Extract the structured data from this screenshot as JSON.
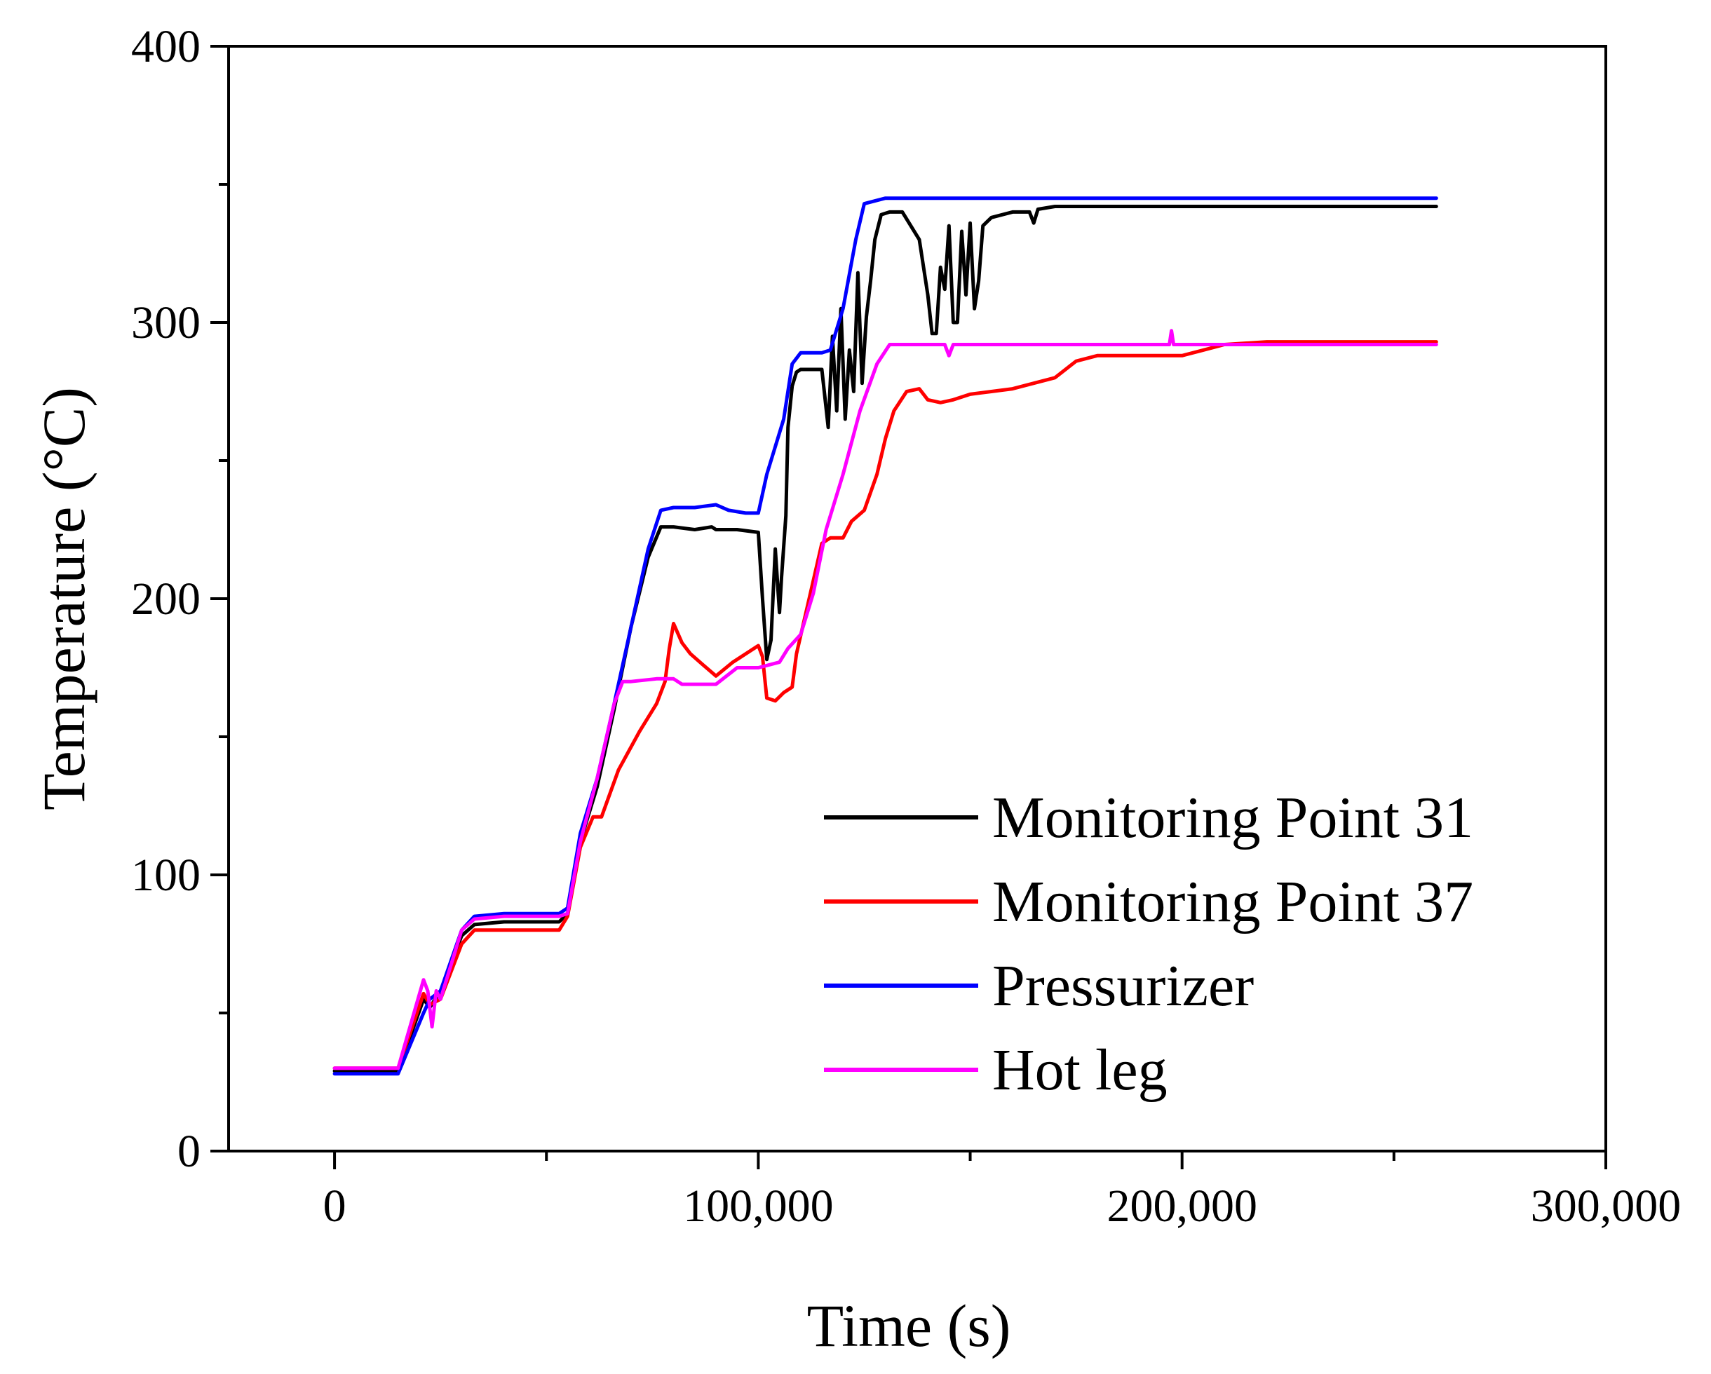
{
  "chart_data": {
    "type": "line",
    "title": "",
    "xlabel": "Time (s)",
    "ylabel": "Temperature (°C)",
    "xlim": [
      -25000,
      300000
    ],
    "ylim": [
      0,
      400
    ],
    "x_ticks": [
      0,
      100000,
      200000,
      300000
    ],
    "x_tick_labels": [
      "0",
      "100,000",
      "200,000",
      "300,000"
    ],
    "x_minor_ticks": [
      50000,
      150000,
      250000
    ],
    "y_ticks": [
      0,
      100,
      200,
      300,
      400
    ],
    "y_tick_labels": [
      "0",
      "100",
      "200",
      "300",
      "400"
    ],
    "y_minor_ticks": [
      50,
      150,
      250,
      350
    ],
    "grid": false,
    "legend_position": "bottom-right",
    "series": [
      {
        "name": "Monitoring Point 31",
        "color": "#000000",
        "x": [
          0,
          15000,
          21000,
          22500,
          25000,
          30000,
          33000,
          40000,
          53000,
          55000,
          58000,
          62000,
          66000,
          70000,
          74000,
          77000,
          80000,
          85000,
          89000,
          90000,
          95000,
          100000,
          101000,
          102000,
          103000,
          104000,
          105000,
          105500,
          106500,
          107000,
          108000,
          109000,
          110000,
          112000,
          115000,
          116500,
          117500,
          118500,
          119500,
          120500,
          121500,
          122500,
          123500,
          124500,
          125500,
          126500,
          127500,
          129000,
          131000,
          134000,
          138000,
          140000,
          141000,
          142000,
          143000,
          144000,
          145000,
          146000,
          147000,
          148000,
          149000,
          150000,
          151000,
          152000,
          153000,
          155000,
          160000,
          164000,
          165000,
          166000,
          170000,
          180000,
          200000,
          220000,
          240000,
          260000
        ],
        "y": [
          29,
          29,
          55,
          52,
          58,
          78,
          82,
          83,
          83,
          86,
          112,
          132,
          160,
          190,
          215,
          226,
          226,
          225,
          226,
          225,
          225,
          224,
          200,
          178,
          185,
          218,
          195,
          208,
          230,
          262,
          277,
          282,
          283,
          283,
          283,
          262,
          295,
          268,
          305,
          265,
          290,
          275,
          318,
          278,
          302,
          315,
          330,
          339,
          340,
          340,
          330,
          310,
          296,
          296,
          320,
          312,
          335,
          300,
          300,
          333,
          310,
          336,
          305,
          315,
          335,
          338,
          340,
          340,
          336,
          341,
          342,
          342,
          342,
          342,
          342,
          342
        ]
      },
      {
        "name": "Monitoring Point 37",
        "color": "#ff0000",
        "x": [
          0,
          15000,
          21000,
          22500,
          25000,
          30000,
          33000,
          40000,
          53000,
          55000,
          58000,
          61000,
          63000,
          67000,
          72000,
          76000,
          78000,
          79000,
          80000,
          82000,
          84000,
          87000,
          90000,
          94000,
          98000,
          100000,
          101000,
          102000,
          104000,
          106000,
          108000,
          109000,
          112000,
          115000,
          117000,
          120000,
          122000,
          125000,
          128000,
          130000,
          132000,
          135000,
          138000,
          140000,
          143000,
          146000,
          150000,
          155000,
          160000,
          165000,
          170000,
          175000,
          180000,
          190000,
          200000,
          205000,
          210000,
          220000,
          230000,
          240000,
          250000,
          260000
        ],
        "y": [
          30,
          30,
          57,
          53,
          55,
          75,
          80,
          80,
          80,
          85,
          110,
          121,
          121,
          138,
          152,
          162,
          170,
          182,
          191,
          184,
          180,
          176,
          172,
          177,
          181,
          183,
          179,
          164,
          163,
          166,
          168,
          180,
          200,
          220,
          222,
          222,
          228,
          232,
          245,
          258,
          268,
          275,
          276,
          272,
          271,
          272,
          274,
          275,
          276,
          278,
          280,
          286,
          288,
          288,
          288,
          290,
          292,
          293,
          293,
          293,
          293,
          293
        ]
      },
      {
        "name": "Pressurizer",
        "color": "#0000ff",
        "x": [
          0,
          15000,
          21000,
          22500,
          25000,
          30000,
          33000,
          40000,
          53000,
          55000,
          58000,
          62000,
          66000,
          70000,
          74000,
          77000,
          80000,
          85000,
          90000,
          93000,
          97000,
          100000,
          102000,
          106000,
          108000,
          110000,
          115000,
          117000,
          120000,
          123000,
          125000,
          130000,
          140000,
          160000,
          180000,
          200000,
          220000,
          240000,
          260000
        ],
        "y": [
          28,
          28,
          50,
          55,
          58,
          80,
          85,
          86,
          86,
          88,
          115,
          135,
          162,
          190,
          218,
          232,
          233,
          233,
          234,
          232,
          231,
          231,
          245,
          265,
          285,
          289,
          289,
          290,
          305,
          330,
          343,
          345,
          345,
          345,
          345,
          345,
          345,
          345,
          345
        ]
      },
      {
        "name": "Hot leg",
        "color": "#ff00ff",
        "x": [
          0,
          15000,
          21000,
          22000,
          23000,
          24000,
          25000,
          30000,
          33000,
          40000,
          53000,
          55000,
          58000,
          62000,
          66000,
          68000,
          70000,
          76000,
          80000,
          82000,
          90000,
          95000,
          100000,
          105000,
          107000,
          110000,
          113000,
          116000,
          120000,
          124000,
          128000,
          131000,
          135000,
          144000,
          145000,
          146000,
          148000,
          160000,
          180000,
          197000,
          197500,
          198000,
          200000,
          220000,
          240000,
          260000
        ],
        "y": [
          30,
          30,
          62,
          58,
          45,
          58,
          55,
          80,
          84,
          85,
          85,
          86,
          112,
          135,
          162,
          170,
          170,
          171,
          171,
          169,
          169,
          175,
          175,
          177,
          182,
          187,
          202,
          225,
          245,
          268,
          285,
          292,
          292,
          292,
          288,
          292,
          292,
          292,
          292,
          292,
          297,
          292,
          292,
          292,
          292,
          292
        ]
      }
    ]
  }
}
